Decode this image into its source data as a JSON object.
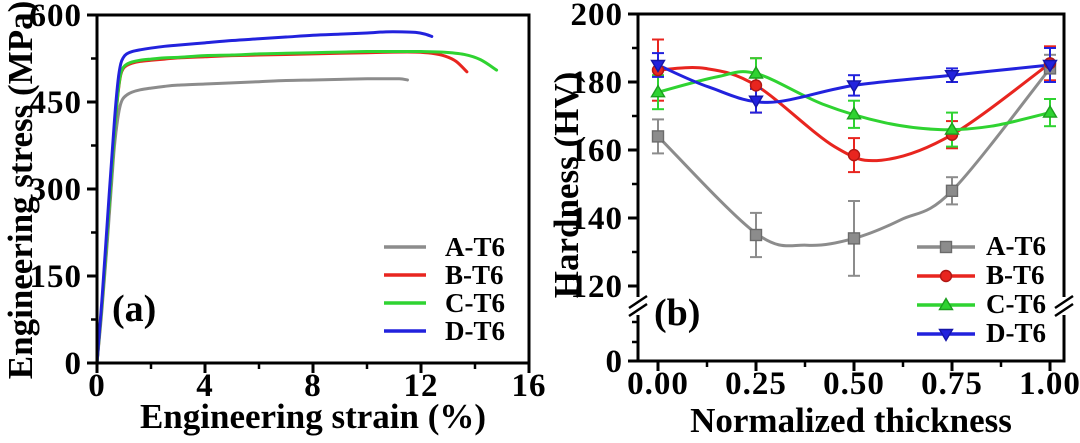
{
  "figure": {
    "background": "#ffffff",
    "frame_color": "#000000"
  },
  "chart_data": [
    {
      "type": "line",
      "panel_label": "(a)",
      "xlabel": "Engineering strain (%)",
      "ylabel": "Engineering stress (MPa)",
      "xlim": [
        0,
        16
      ],
      "ylim": [
        0,
        600
      ],
      "grid": false,
      "legend_position": "lower-right",
      "legend_style": "line",
      "xticks": {
        "major": [
          0,
          4,
          8,
          12,
          16
        ],
        "labels": [
          "0",
          "4",
          "8",
          "12",
          "16"
        ],
        "minor": [
          2,
          6,
          10,
          14
        ]
      },
      "yticks": {
        "major": [
          0,
          150,
          300,
          450,
          600
        ],
        "labels": [
          "0",
          "150",
          "300",
          "450",
          "600"
        ],
        "minor": [
          75,
          225,
          375,
          525
        ]
      },
      "series": [
        {
          "name": "A-T6",
          "color": "#8c8c8c",
          "points": [
            [
              0,
              0
            ],
            [
              0.18,
              90
            ],
            [
              0.4,
              220
            ],
            [
              0.62,
              360
            ],
            [
              0.75,
              415
            ],
            [
              0.85,
              442
            ],
            [
              0.95,
              455
            ],
            [
              1.1,
              462
            ],
            [
              1.3,
              467
            ],
            [
              1.6,
              471
            ],
            [
              2,
              474
            ],
            [
              2.5,
              477
            ],
            [
              3,
              479
            ],
            [
              4,
              481
            ],
            [
              5,
              483
            ],
            [
              6,
              485
            ],
            [
              7,
              487
            ],
            [
              8,
              488
            ],
            [
              9,
              489
            ],
            [
              10,
              490
            ],
            [
              10.7,
              490
            ],
            [
              11.2,
              490
            ],
            [
              11.5,
              488
            ]
          ]
        },
        {
          "name": "B-T6",
          "color": "#e8251f",
          "points": [
            [
              0,
              0
            ],
            [
              0.2,
              110
            ],
            [
              0.45,
              270
            ],
            [
              0.65,
              400
            ],
            [
              0.78,
              465
            ],
            [
              0.88,
              497
            ],
            [
              0.98,
              508
            ],
            [
              1.1,
              513
            ],
            [
              1.3,
              517
            ],
            [
              1.6,
              520
            ],
            [
              2,
              522
            ],
            [
              2.5,
              524
            ],
            [
              3,
              526
            ],
            [
              4,
              528
            ],
            [
              5,
              530
            ],
            [
              6,
              531
            ],
            [
              7,
              532
            ],
            [
              8,
              533
            ],
            [
              9,
              534
            ],
            [
              10,
              535
            ],
            [
              11,
              536
            ],
            [
              11.8,
              536
            ],
            [
              12.4,
              534
            ],
            [
              12.9,
              529
            ],
            [
              13.3,
              520
            ],
            [
              13.7,
              502
            ]
          ]
        },
        {
          "name": "C-T6",
          "color": "#2fd331",
          "points": [
            [
              0,
              0
            ],
            [
              0.2,
              110
            ],
            [
              0.45,
              270
            ],
            [
              0.65,
              400
            ],
            [
              0.78,
              467
            ],
            [
              0.88,
              499
            ],
            [
              0.98,
              510
            ],
            [
              1.1,
              515
            ],
            [
              1.3,
              519
            ],
            [
              1.6,
              522
            ],
            [
              2,
              524
            ],
            [
              2.5,
              526
            ],
            [
              3,
              527
            ],
            [
              4,
              530
            ],
            [
              5,
              531
            ],
            [
              6,
              533
            ],
            [
              7,
              534
            ],
            [
              8,
              535
            ],
            [
              9,
              536
            ],
            [
              10,
              537
            ],
            [
              11,
              537
            ],
            [
              12,
              537
            ],
            [
              12.8,
              536
            ],
            [
              13.6,
              532
            ],
            [
              14.2,
              523
            ],
            [
              14.8,
              505
            ]
          ]
        },
        {
          "name": "D-T6",
          "color": "#2222dd",
          "points": [
            [
              0,
              0
            ],
            [
              0.2,
              120
            ],
            [
              0.45,
              290
            ],
            [
              0.65,
              420
            ],
            [
              0.78,
              487
            ],
            [
              0.88,
              516
            ],
            [
              0.98,
              527
            ],
            [
              1.1,
              533
            ],
            [
              1.3,
              537
            ],
            [
              1.6,
              540
            ],
            [
              2,
              543
            ],
            [
              2.5,
              546
            ],
            [
              3,
              548
            ],
            [
              4,
              552
            ],
            [
              5,
              556
            ],
            [
              6,
              559
            ],
            [
              7,
              562
            ],
            [
              8,
              565
            ],
            [
              9,
              567
            ],
            [
              10,
              569
            ],
            [
              10.7,
              571
            ],
            [
              11.3,
              571
            ],
            [
              11.8,
              570
            ],
            [
              12.15,
              567
            ],
            [
              12.4,
              563
            ]
          ]
        }
      ]
    },
    {
      "type": "scatter-line",
      "panel_label": "(b)",
      "xlabel": "Normalized thickness",
      "ylabel": "Hardness (HV)",
      "xlim": [
        0,
        1
      ],
      "ylim": [
        0,
        200
      ],
      "axis_break": {
        "between": [
          0,
          120
        ]
      },
      "grid": false,
      "legend_position": "lower-right",
      "legend_style": "line-marker",
      "x": [
        0.0,
        0.25,
        0.5,
        0.75,
        1.0
      ],
      "xticks": {
        "major": [
          0,
          0.25,
          0.5,
          0.75,
          1
        ],
        "labels": [
          "0.00",
          "0.25",
          "0.50",
          "0.75",
          "1.00"
        ],
        "minor": [
          0.125,
          0.375,
          0.625,
          0.875
        ]
      },
      "yticks": {
        "major": [
          120,
          140,
          160,
          180,
          200
        ],
        "labels": [
          "120",
          "140",
          "160",
          "180",
          "200"
        ],
        "minor": [
          130,
          150,
          170,
          190
        ],
        "zero_label": "0"
      },
      "series": [
        {
          "name": "A-T6",
          "marker": "square",
          "color": "#8c8c8c",
          "edge": "#6b6b6b",
          "values": [
            164,
            135,
            134,
            148,
            184
          ],
          "errors": [
            5,
            6.5,
            11,
            4,
            4
          ],
          "curve": [
            [
              0,
              164
            ],
            [
              0.25,
              135.5
            ],
            [
              0.38,
              132
            ],
            [
              0.5,
              134
            ],
            [
              0.62,
              139.5
            ],
            [
              0.75,
              148
            ],
            [
              1,
              184
            ]
          ]
        },
        {
          "name": "B-T6",
          "marker": "circle",
          "color": "#e8251f",
          "edge": "#b01714",
          "values": [
            183.5,
            179,
            158.5,
            164.5,
            185.5
          ],
          "errors": [
            9,
            8,
            5,
            4,
            5
          ],
          "curve": [
            [
              0,
              183.5
            ],
            [
              0.12,
              184
            ],
            [
              0.25,
              179
            ],
            [
              0.45,
              161
            ],
            [
              0.57,
              157
            ],
            [
              0.75,
              164.5
            ],
            [
              1,
              185.5
            ]
          ]
        },
        {
          "name": "C-T6",
          "marker": "triangle-up",
          "color": "#2fd331",
          "edge": "#1d9e1f",
          "values": [
            177,
            182.5,
            170.5,
            166,
            171
          ],
          "errors": [
            5,
            4.5,
            4,
            5,
            4
          ],
          "curve": [
            [
              0,
              177
            ],
            [
              0.15,
              181.5
            ],
            [
              0.25,
              182.5
            ],
            [
              0.42,
              173.5
            ],
            [
              0.58,
              168
            ],
            [
              0.72,
              166
            ],
            [
              0.85,
              167
            ],
            [
              1,
              171
            ]
          ]
        },
        {
          "name": "D-T6",
          "marker": "triangle-down",
          "color": "#2222dd",
          "edge": "#1515a8",
          "values": [
            185,
            174.5,
            179,
            182,
            185
          ],
          "errors": [
            3.5,
            3.5,
            3,
            2,
            5
          ],
          "curve": [
            [
              0,
              185
            ],
            [
              0.13,
              178.5
            ],
            [
              0.28,
              174
            ],
            [
              0.5,
              179
            ],
            [
              0.75,
              182
            ],
            [
              1,
              185
            ]
          ]
        }
      ]
    }
  ]
}
